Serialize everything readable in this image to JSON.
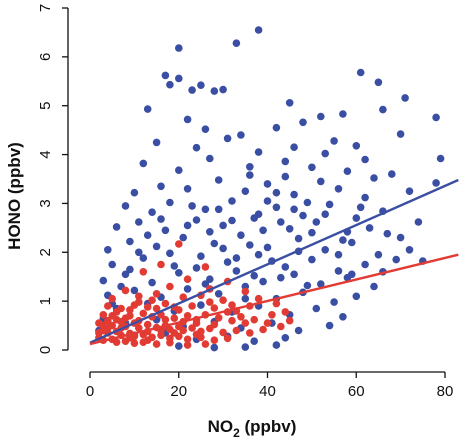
{
  "chart_data": {
    "type": "scatter",
    "title": "",
    "xlabel_main": "NO",
    "xlabel_sub": "2",
    "xlabel_unit": " (ppbv)",
    "ylabel": "HONO (ppbv)",
    "xlim": [
      0,
      80
    ],
    "ylim": [
      0,
      7
    ],
    "xticks": [
      "0",
      "20",
      "40",
      "60",
      "80"
    ],
    "yticks": [
      "0",
      "1",
      "2",
      "3",
      "4",
      "5",
      "6",
      "7"
    ],
    "grid": false,
    "legend": "none",
    "series": [
      {
        "color": "#3a4fa3",
        "points": [
          [
            38,
            6.55
          ],
          [
            33,
            6.28
          ],
          [
            20,
            6.18
          ],
          [
            61,
            5.68
          ],
          [
            65,
            5.48
          ],
          [
            71,
            5.16
          ],
          [
            78,
            4.76
          ],
          [
            57,
            4.83
          ],
          [
            17,
            5.62
          ],
          [
            18,
            5.43
          ],
          [
            20,
            5.56
          ],
          [
            23,
            5.32
          ],
          [
            25,
            5.42
          ],
          [
            28,
            5.3
          ],
          [
            30,
            5.33
          ],
          [
            45,
            5.06
          ],
          [
            13,
            4.93
          ],
          [
            22,
            4.72
          ],
          [
            42,
            4.55
          ],
          [
            52,
            4.78
          ],
          [
            66,
            4.92
          ],
          [
            26,
            4.52
          ],
          [
            34,
            4.4
          ],
          [
            48,
            4.66
          ],
          [
            15,
            4.25
          ],
          [
            24,
            4.14
          ],
          [
            31,
            4.33
          ],
          [
            38,
            4.05
          ],
          [
            55,
            4.28
          ],
          [
            60,
            4.18
          ],
          [
            70,
            4.42
          ],
          [
            78,
            3.42
          ],
          [
            79,
            3.92
          ],
          [
            12,
            3.82
          ],
          [
            20,
            3.68
          ],
          [
            27,
            3.92
          ],
          [
            36,
            3.58
          ],
          [
            44,
            3.86
          ],
          [
            50,
            3.74
          ],
          [
            58,
            3.66
          ],
          [
            64,
            3.52
          ],
          [
            68,
            3.6
          ],
          [
            10,
            3.22
          ],
          [
            16,
            3.35
          ],
          [
            22,
            3.3
          ],
          [
            29,
            3.48
          ],
          [
            35,
            3.25
          ],
          [
            40,
            3.4
          ],
          [
            46,
            3.18
          ],
          [
            52,
            3.45
          ],
          [
            56,
            3.3
          ],
          [
            62,
            3.12
          ],
          [
            72,
            3.25
          ],
          [
            8,
            2.95
          ],
          [
            14,
            2.82
          ],
          [
            18,
            3.02
          ],
          [
            26,
            2.88
          ],
          [
            32,
            3.05
          ],
          [
            42,
            2.92
          ],
          [
            48,
            2.75
          ],
          [
            54,
            2.98
          ],
          [
            60,
            2.7
          ],
          [
            66,
            2.84
          ],
          [
            6,
            2.52
          ],
          [
            11,
            2.62
          ],
          [
            17,
            2.45
          ],
          [
            24,
            2.66
          ],
          [
            30,
            2.55
          ],
          [
            37,
            2.7
          ],
          [
            45,
            2.48
          ],
          [
            51,
            2.62
          ],
          [
            58,
            2.42
          ],
          [
            63,
            2.5
          ],
          [
            70,
            2.3
          ],
          [
            4,
            2.05
          ],
          [
            9,
            2.22
          ],
          [
            15,
            2.12
          ],
          [
            21,
            2.3
          ],
          [
            28,
            2.18
          ],
          [
            34,
            2.35
          ],
          [
            40,
            2.1
          ],
          [
            47,
            2.28
          ],
          [
            53,
            2.05
          ],
          [
            59,
            2.2
          ],
          [
            65,
            1.95
          ],
          [
            75,
            1.82
          ],
          [
            5,
            1.75
          ],
          [
            12,
            1.88
          ],
          [
            19,
            1.72
          ],
          [
            25,
            1.92
          ],
          [
            31,
            1.8
          ],
          [
            38,
            1.95
          ],
          [
            44,
            1.7
          ],
          [
            50,
            1.85
          ],
          [
            56,
            1.62
          ],
          [
            62,
            1.75
          ],
          [
            3,
            1.42
          ],
          [
            8,
            1.55
          ],
          [
            14,
            1.38
          ],
          [
            20,
            1.58
          ],
          [
            27,
            1.45
          ],
          [
            33,
            1.62
          ],
          [
            39,
            1.4
          ],
          [
            46,
            1.55
          ],
          [
            52,
            1.35
          ],
          [
            58,
            1.48
          ],
          [
            64,
            1.3
          ],
          [
            4,
            1.12
          ],
          [
            10,
            1.22
          ],
          [
            16,
            1.08
          ],
          [
            22,
            1.25
          ],
          [
            29,
            1.15
          ],
          [
            35,
            1.3
          ],
          [
            42,
            1.05
          ],
          [
            48,
            1.18
          ],
          [
            55,
            0.98
          ],
          [
            60,
            1.1
          ],
          [
            6,
            0.85
          ],
          [
            13,
            0.95
          ],
          [
            19,
            0.8
          ],
          [
            25,
            0.92
          ],
          [
            32,
            0.78
          ],
          [
            38,
            0.9
          ],
          [
            45,
            0.72
          ],
          [
            51,
            0.85
          ],
          [
            57,
            0.68
          ],
          [
            8,
            0.55
          ],
          [
            15,
            0.62
          ],
          [
            21,
            0.48
          ],
          [
            28,
            0.58
          ],
          [
            34,
            0.45
          ],
          [
            41,
            0.55
          ],
          [
            47,
            0.4
          ],
          [
            54,
            0.5
          ],
          [
            10,
            0.3
          ],
          [
            17,
            0.35
          ],
          [
            24,
            0.22
          ],
          [
            31,
            0.28
          ],
          [
            37,
            0.18
          ],
          [
            44,
            0.25
          ],
          [
            20,
            0.08
          ],
          [
            28,
            0.05
          ],
          [
            35,
            0.06
          ],
          [
            42,
            0.1
          ],
          [
            2,
            0.4
          ],
          [
            3,
            0.65
          ],
          [
            5,
            0.95
          ],
          [
            7,
            1.3
          ],
          [
            9,
            1.65
          ],
          [
            11,
            2.0
          ],
          [
            13,
            2.35
          ],
          [
            23,
            2.95
          ],
          [
            36,
            2.15
          ],
          [
            43,
            2.62
          ],
          [
            49,
            3.02
          ],
          [
            39,
            2.45
          ],
          [
            41,
            1.82
          ],
          [
            47,
            2.02
          ],
          [
            33,
            1.88
          ],
          [
            37,
            1.52
          ],
          [
            27,
            2.42
          ],
          [
            30,
            2.08
          ],
          [
            24,
            1.68
          ],
          [
            18,
            1.98
          ],
          [
            53,
            2.78
          ],
          [
            57,
            2.25
          ],
          [
            61,
            2.92
          ],
          [
            67,
            2.38
          ],
          [
            72,
            2.05
          ],
          [
            44,
            3.55
          ],
          [
            40,
            3.05
          ],
          [
            36,
            3.75
          ],
          [
            46,
            4.15
          ],
          [
            53,
            4.02
          ],
          [
            62,
            3.9
          ],
          [
            35,
            1.05
          ],
          [
            26,
            1.35
          ],
          [
            43,
            1.48
          ],
          [
            49,
            1.32
          ],
          [
            56,
            1.95
          ],
          [
            59,
            1.55
          ],
          [
            66,
            1.6
          ],
          [
            69,
            1.85
          ],
          [
            74,
            2.62
          ],
          [
            50,
            2.4
          ],
          [
            46,
            2.88
          ],
          [
            42,
            3.22
          ],
          [
            38,
            2.78
          ],
          [
            32,
            2.65
          ],
          [
            29,
            2.88
          ],
          [
            22,
            2.55
          ],
          [
            16,
            2.68
          ]
        ]
      },
      {
        "color": "#e23b34",
        "points": [
          [
            20,
            2.17
          ],
          [
            16,
            1.75
          ],
          [
            26,
            1.7
          ],
          [
            12,
            1.6
          ],
          [
            22,
            1.45
          ],
          [
            31,
            1.4
          ],
          [
            8,
            1.22
          ],
          [
            18,
            1.3
          ],
          [
            27,
            1.25
          ],
          [
            35,
            1.2
          ],
          [
            5,
            1.05
          ],
          [
            11,
            1.1
          ],
          [
            15,
            1.15
          ],
          [
            21,
            1.08
          ],
          [
            25,
            1.12
          ],
          [
            30,
            1.02
          ],
          [
            38,
            1.05
          ],
          [
            42,
            0.95
          ],
          [
            4,
            0.9
          ],
          [
            7,
            0.85
          ],
          [
            10,
            0.92
          ],
          [
            13,
            0.88
          ],
          [
            17,
            0.95
          ],
          [
            20,
            0.82
          ],
          [
            23,
            0.9
          ],
          [
            28,
            0.86
          ],
          [
            33,
            0.8
          ],
          [
            36,
            0.9
          ],
          [
            44,
            0.78
          ],
          [
            3,
            0.72
          ],
          [
            6,
            0.78
          ],
          [
            9,
            0.7
          ],
          [
            12,
            0.75
          ],
          [
            14,
            0.68
          ],
          [
            16,
            0.72
          ],
          [
            19,
            0.65
          ],
          [
            22,
            0.7
          ],
          [
            24,
            0.62
          ],
          [
            26,
            0.72
          ],
          [
            29,
            0.66
          ],
          [
            32,
            0.6
          ],
          [
            34,
            0.68
          ],
          [
            37,
            0.62
          ],
          [
            40,
            0.55
          ],
          [
            45,
            0.6
          ],
          [
            2,
            0.55
          ],
          [
            4,
            0.6
          ],
          [
            5,
            0.5
          ],
          [
            7,
            0.58
          ],
          [
            8,
            0.48
          ],
          [
            10,
            0.55
          ],
          [
            11,
            0.45
          ],
          [
            13,
            0.52
          ],
          [
            15,
            0.46
          ],
          [
            17,
            0.5
          ],
          [
            18,
            0.42
          ],
          [
            20,
            0.48
          ],
          [
            21,
            0.4
          ],
          [
            23,
            0.45
          ],
          [
            25,
            0.38
          ],
          [
            27,
            0.44
          ],
          [
            30,
            0.36
          ],
          [
            33,
            0.4
          ],
          [
            36,
            0.35
          ],
          [
            39,
            0.42
          ],
          [
            3,
            0.4
          ],
          [
            4,
            0.35
          ],
          [
            6,
            0.38
          ],
          [
            7,
            0.3
          ],
          [
            9,
            0.34
          ],
          [
            10,
            0.28
          ],
          [
            12,
            0.32
          ],
          [
            14,
            0.26
          ],
          [
            16,
            0.3
          ],
          [
            18,
            0.24
          ],
          [
            20,
            0.28
          ],
          [
            22,
            0.22
          ],
          [
            25,
            0.26
          ],
          [
            28,
            0.2
          ],
          [
            31,
            0.24
          ],
          [
            2,
            0.25
          ],
          [
            3,
            0.2
          ],
          [
            5,
            0.22
          ],
          [
            6,
            0.16
          ],
          [
            8,
            0.18
          ],
          [
            10,
            0.14
          ],
          [
            12,
            0.16
          ],
          [
            15,
            0.12
          ],
          [
            18,
            0.15
          ],
          [
            22,
            0.1
          ],
          [
            26,
            0.12
          ],
          [
            4,
            0.45
          ],
          [
            6,
            0.62
          ],
          [
            9,
            0.82
          ],
          [
            11,
            0.98
          ],
          [
            14,
            1.02
          ],
          [
            17,
            0.62
          ],
          [
            19,
            0.88
          ],
          [
            24,
            0.55
          ],
          [
            28,
            0.52
          ],
          [
            31,
            0.78
          ],
          [
            35,
            0.55
          ],
          [
            41,
            0.72
          ],
          [
            43,
            0.48
          ],
          [
            13,
            0.38
          ],
          [
            19,
            0.35
          ],
          [
            24,
            0.32
          ],
          [
            8,
            0.65
          ],
          [
            15,
            0.85
          ],
          [
            21,
            0.58
          ],
          [
            27,
            0.98
          ],
          [
            32,
            0.92
          ],
          [
            2,
            0.35
          ],
          [
            3,
            0.5
          ],
          [
            5,
            0.7
          ],
          [
            7,
            0.45
          ],
          [
            9,
            0.25
          ],
          [
            11,
            0.6
          ],
          [
            13,
            0.2
          ],
          [
            16,
            0.4
          ]
        ]
      }
    ],
    "fit_lines": [
      {
        "color": "#3a4fa3",
        "x": [
          0,
          83
        ],
        "y": [
          0.15,
          3.48
        ]
      },
      {
        "color": "#e23b34",
        "x": [
          0,
          83
        ],
        "y": [
          0.12,
          1.95
        ]
      }
    ]
  }
}
